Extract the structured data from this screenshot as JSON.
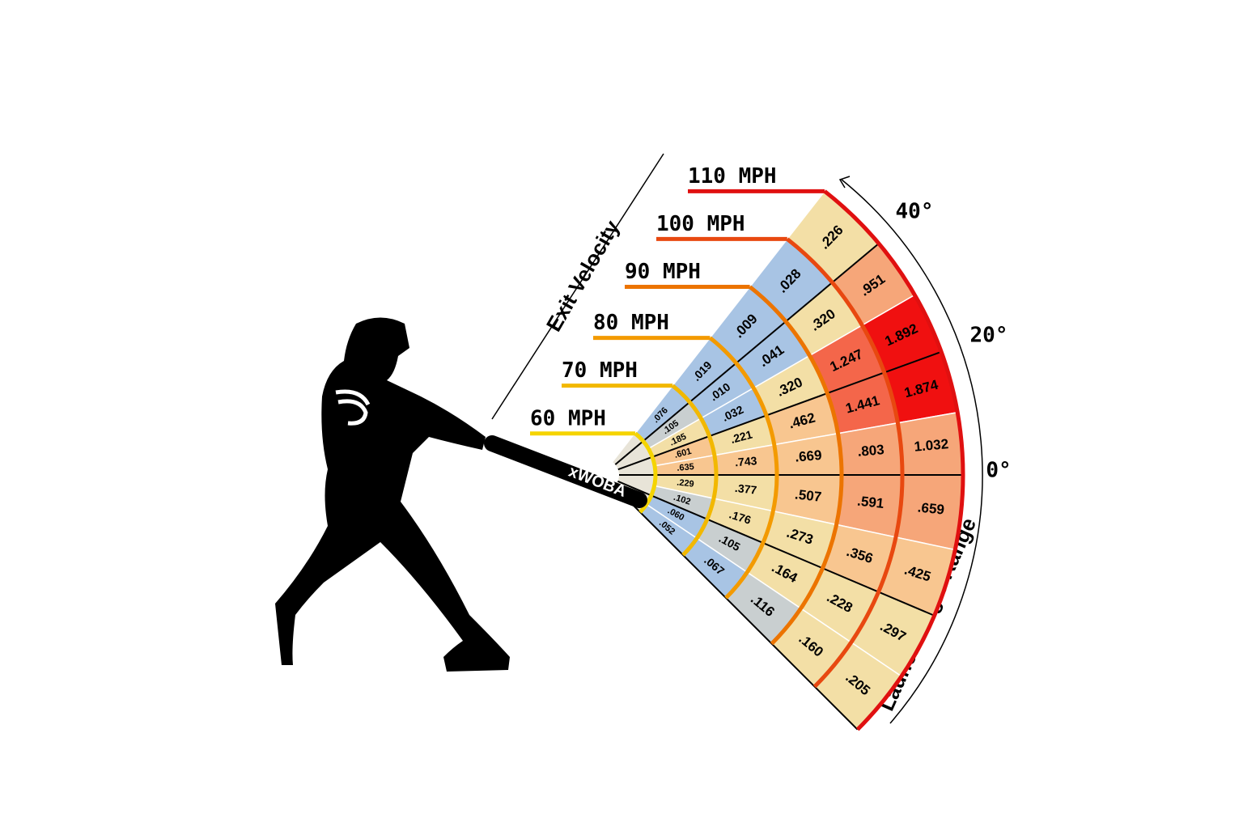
{
  "xwoba_label": "xWOBA",
  "exit_velocity_label": "Exit Velocity",
  "launch_angle_label": "Launch Angle Range",
  "angle_labels": [
    "40°",
    "20°",
    "0°"
  ],
  "speed_labels": [
    "60 MPH",
    "70 MPH",
    "80 MPH",
    "90 MPH",
    "100 MPH",
    "110 MPH"
  ],
  "speed_colors": [
    "#f5d400",
    "#f2b800",
    "#f39a00",
    "#ec7400",
    "#e84810",
    "#e01010"
  ],
  "rings": [
    {
      "cells": [
        ".076",
        ".105",
        ".185",
        ".601",
        ".635",
        ".229",
        ".102",
        ".060",
        ".052"
      ],
      "colors": [
        "#a8c4e4",
        "#c9cfd0",
        "#f3dfa6",
        "#f8c690",
        "#f8c690",
        "#f3dfa6",
        "#c9cfd0",
        "#a8c4e4",
        "#a8c4e4"
      ]
    },
    {
      "cells": [
        ".019",
        ".010",
        ".032",
        ".221",
        ".743",
        ".377",
        ".176",
        ".105",
        ".067"
      ],
      "colors": [
        "#a8c4e4",
        "#a8c4e4",
        "#a8c4e4",
        "#f3dfa6",
        "#f8c690",
        "#f3dfa6",
        "#f3dfa6",
        "#c9cfd0",
        "#a8c4e4"
      ]
    },
    {
      "cells": [
        ".009",
        ".041",
        ".320",
        ".462",
        ".669",
        ".507",
        ".273",
        ".164",
        ".116"
      ],
      "colors": [
        "#a8c4e4",
        "#a8c4e4",
        "#f3dfa6",
        "#f8c690",
        "#f8c690",
        "#f8c690",
        "#f3dfa6",
        "#f3dfa6",
        "#c9cfd0"
      ]
    },
    {
      "cells": [
        ".028",
        ".320",
        "1.247",
        "1.441",
        ".803",
        ".591",
        ".356",
        ".228",
        ".160"
      ],
      "colors": [
        "#a8c4e4",
        "#f3dfa6",
        "#f4664a",
        "#f4664a",
        "#f6a679",
        "#f6a679",
        "#f8c690",
        "#f3dfa6",
        "#f3dfa6"
      ]
    },
    {
      "cells": [
        ".226",
        ".951",
        "1.892",
        "1.874",
        "1.032",
        ".659",
        ".425",
        ".297",
        ".205"
      ],
      "colors": [
        "#f3dfa6",
        "#f6a679",
        "#f01010",
        "#f01010",
        "#f6a679",
        "#f6a679",
        "#f8c690",
        "#f3dfa6",
        "#f3dfa6"
      ]
    }
  ]
}
